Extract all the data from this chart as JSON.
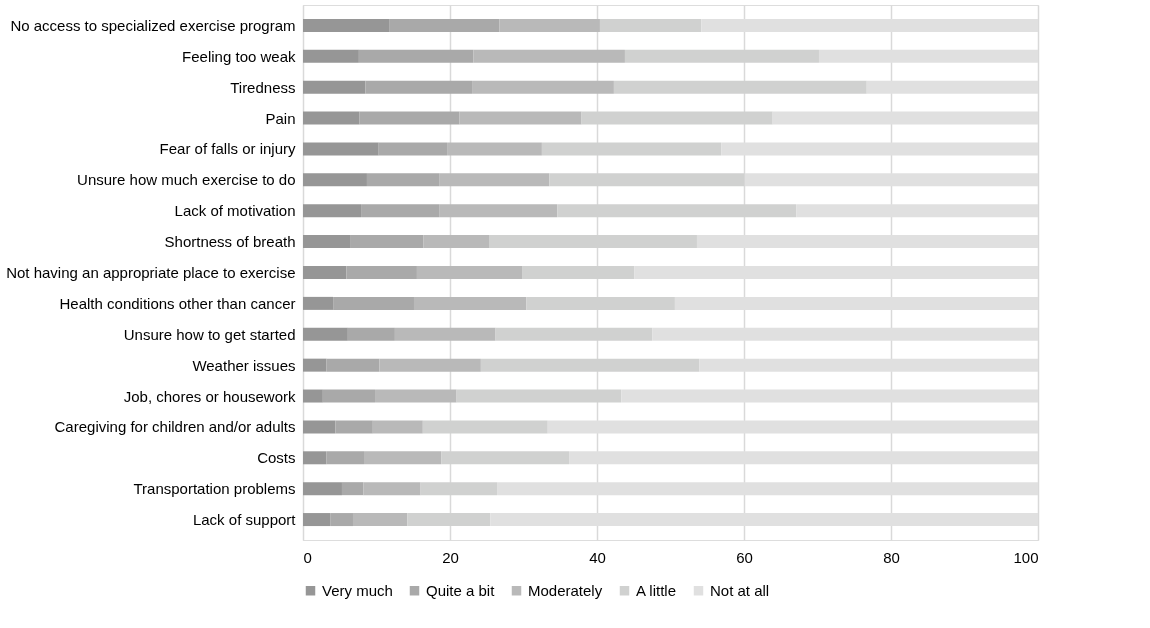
{
  "chart_data": {
    "type": "bar",
    "orientation": "horizontal",
    "stacked": true,
    "categories": [
      "No access to specialized exercise program",
      "Feeling too weak",
      "Tiredness",
      "Pain",
      "Fear of falls or injury",
      "Unsure how much exercise to do",
      "Lack of motivation",
      "Shortness of breath",
      "Not having an appropriate place to exercise",
      "Health conditions other than cancer",
      "Unsure how to get started",
      "Weather issues",
      "Job, chores or housework",
      "Caregiving for children and/or adults",
      "Costs",
      "Transportation problems",
      "Lack of support"
    ],
    "series": [
      {
        "name": "Very much",
        "color": "#969696",
        "values": [
          11.8,
          7.6,
          8.5,
          7.7,
          10.3,
          8.7,
          7.9,
          6.4,
          5.9,
          4.1,
          6.1,
          3.2,
          2.7,
          4.4,
          3.2,
          5.3,
          3.7
        ]
      },
      {
        "name": "Quite a bit",
        "color": "#a9a9a9",
        "values": [
          14.9,
          15.6,
          14.5,
          13.6,
          9.3,
          9.9,
          10.7,
          10.0,
          9.6,
          11.0,
          6.4,
          7.2,
          7.1,
          5.1,
          5.1,
          2.9,
          3.1
        ]
      },
      {
        "name": "Moderately",
        "color": "#b9b9b9",
        "values": [
          13.7,
          20.6,
          19.3,
          16.6,
          12.9,
          14.9,
          16.0,
          9.0,
          14.3,
          15.3,
          13.7,
          13.8,
          11.1,
          6.8,
          10.5,
          7.8,
          7.4
        ]
      },
      {
        "name": "A little",
        "color": "#d0d1d0",
        "values": [
          13.8,
          26.4,
          34.4,
          26.0,
          24.4,
          26.6,
          32.5,
          28.2,
          15.3,
          20.2,
          21.3,
          29.7,
          22.4,
          17.0,
          17.4,
          10.4,
          11.3
        ]
      },
      {
        "name": "Not at all",
        "color": "#e0e0e0",
        "values": [
          45.8,
          29.8,
          23.3,
          36.1,
          43.1,
          39.9,
          32.9,
          46.4,
          54.9,
          49.4,
          52.5,
          46.1,
          56.7,
          66.7,
          63.8,
          73.6,
          74.5
        ]
      }
    ],
    "xlim": [
      0,
      100
    ],
    "xticks": [
      0,
      20,
      40,
      60,
      80,
      100
    ],
    "grid": "x",
    "legend": "bottom"
  }
}
